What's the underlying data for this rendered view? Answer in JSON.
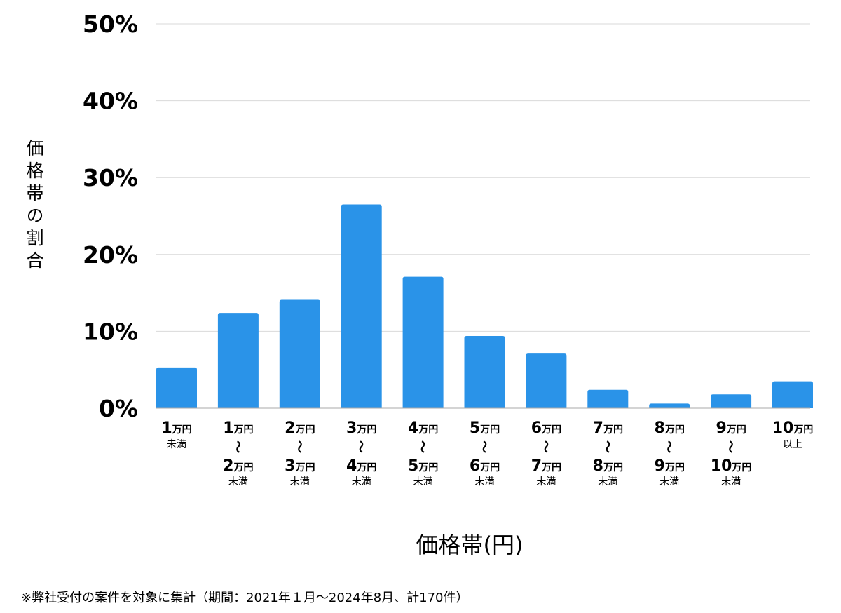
{
  "chart_data": {
    "type": "bar",
    "xlabel": "価格帯(円)",
    "ylabel": "価格帯の割合",
    "ylim": [
      0,
      50
    ],
    "yticks": [
      0,
      10,
      20,
      30,
      40,
      50
    ],
    "ytick_suffix": "%",
    "grid": true,
    "bar_color": "#2a93e8",
    "tilde": "〜",
    "categories": [
      {
        "lines": [
          {
            "num": "1",
            "unit": "万円"
          }
        ],
        "sub": "未満"
      },
      {
        "lines": [
          {
            "num": "1",
            "unit": "万円"
          },
          {
            "num": "2",
            "unit": "万円"
          }
        ],
        "sub": "未満"
      },
      {
        "lines": [
          {
            "num": "2",
            "unit": "万円"
          },
          {
            "num": "3",
            "unit": "万円"
          }
        ],
        "sub": "未満"
      },
      {
        "lines": [
          {
            "num": "3",
            "unit": "万円"
          },
          {
            "num": "4",
            "unit": "万円"
          }
        ],
        "sub": "未満"
      },
      {
        "lines": [
          {
            "num": "4",
            "unit": "万円"
          },
          {
            "num": "5",
            "unit": "万円"
          }
        ],
        "sub": "未満"
      },
      {
        "lines": [
          {
            "num": "5",
            "unit": "万円"
          },
          {
            "num": "6",
            "unit": "万円"
          }
        ],
        "sub": "未満"
      },
      {
        "lines": [
          {
            "num": "6",
            "unit": "万円"
          },
          {
            "num": "7",
            "unit": "万円"
          }
        ],
        "sub": "未満"
      },
      {
        "lines": [
          {
            "num": "7",
            "unit": "万円"
          },
          {
            "num": "8",
            "unit": "万円"
          }
        ],
        "sub": "未満"
      },
      {
        "lines": [
          {
            "num": "8",
            "unit": "万円"
          },
          {
            "num": "9",
            "unit": "万円"
          }
        ],
        "sub": "未満"
      },
      {
        "lines": [
          {
            "num": "9",
            "unit": "万円"
          },
          {
            "num": "10",
            "unit": "万円"
          }
        ],
        "sub": "未満"
      },
      {
        "lines": [
          {
            "num": "10",
            "unit": "万円"
          }
        ],
        "sub": "以上"
      }
    ],
    "values": [
      5.3,
      12.4,
      14.1,
      26.5,
      17.1,
      9.4,
      7.1,
      2.4,
      0.6,
      1.8,
      3.5
    ]
  },
  "footnote": "※弊社受付の案件を対象に集計（期間：2021年１月〜2024年8月、計170件）"
}
